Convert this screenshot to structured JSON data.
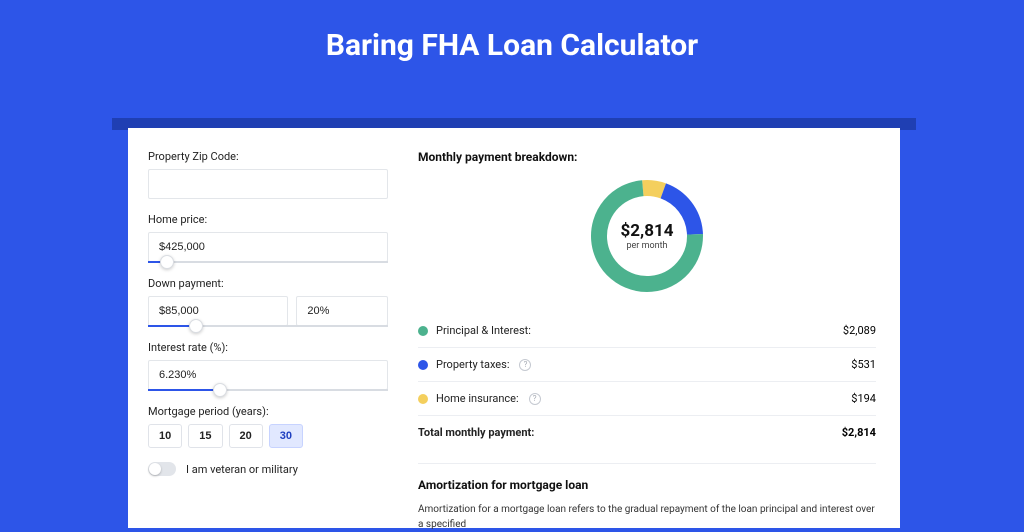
{
  "page": {
    "title": "Baring FHA Loan Calculator",
    "bg_color": "#2d55e8",
    "shadow_color": "#1f3fb3",
    "card_bg": "#ffffff"
  },
  "form": {
    "zip": {
      "label": "Property Zip Code:",
      "value": ""
    },
    "home_price": {
      "label": "Home price:",
      "value": "$425,000",
      "slider_pct": 8
    },
    "down_payment": {
      "label": "Down payment:",
      "value": "$85,000",
      "pct_value": "20%",
      "slider_pct": 20
    },
    "interest": {
      "label": "Interest rate (%):",
      "value": "6.230%",
      "slider_pct": 30
    },
    "period": {
      "label": "Mortgage period (years):",
      "options": [
        "10",
        "15",
        "20",
        "30"
      ],
      "selected": "30"
    },
    "veteran": {
      "label": "I am veteran or military",
      "checked": false
    }
  },
  "breakdown": {
    "title": "Monthly payment breakdown:",
    "donut": {
      "center_amount": "$2,814",
      "center_sub": "per month",
      "slices": [
        {
          "label": "Principal & Interest:",
          "value": "$2,089",
          "color": "#4cb28e",
          "pct": 74.2
        },
        {
          "label": "Property taxes:",
          "value": "$531",
          "color": "#2d55e8",
          "pct": 18.9,
          "info": true
        },
        {
          "label": "Home insurance:",
          "value": "$194",
          "color": "#f4cf5d",
          "pct": 6.9,
          "info": true
        }
      ],
      "stroke_width": 16,
      "radius": 48,
      "bg": "#ffffff"
    },
    "total": {
      "label": "Total monthly payment:",
      "value": "$2,814"
    }
  },
  "amortization": {
    "title": "Amortization for mortgage loan",
    "text": "Amortization for a mortgage loan refers to the gradual repayment of the loan principal and interest over a specified"
  }
}
